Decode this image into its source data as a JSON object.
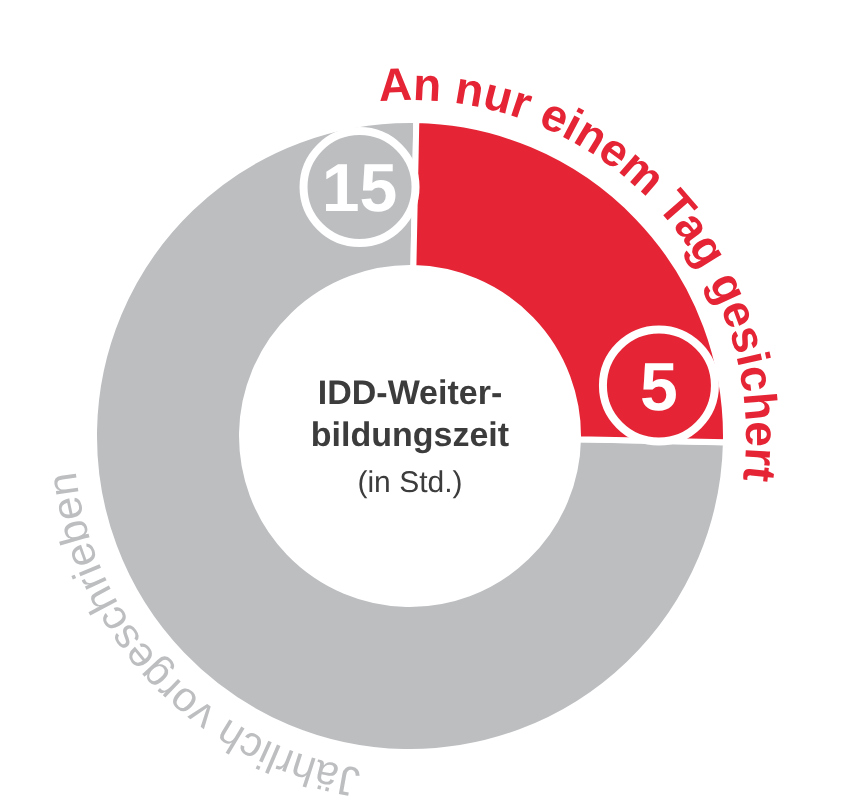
{
  "chart_data": {
    "type": "donut",
    "title": "IDD-Weiter-bildungszeit",
    "subtitle": "(in Std.)",
    "categories": [
      "Jährlich vorgeschrieben",
      "An nur einem Tag gesichert"
    ],
    "values": [
      15,
      5
    ],
    "colors": [
      "#bcbec0",
      "#e52535"
    ],
    "data_labels": true
  }
}
